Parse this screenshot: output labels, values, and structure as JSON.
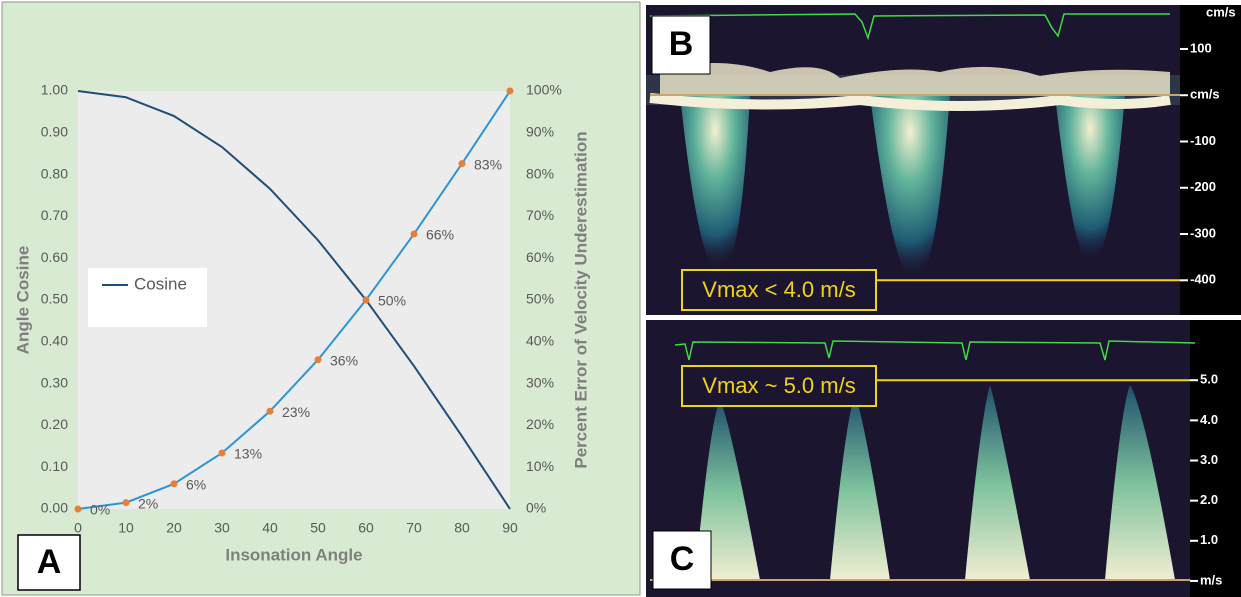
{
  "chart_data": [
    {
      "type": "line",
      "label": "A",
      "x_label": "Insonation Angle",
      "y_label": "Angle Cosine",
      "y2_label": "Percent  Error of Velocity Underestimation",
      "x": [
        0,
        10,
        20,
        30,
        40,
        50,
        60,
        70,
        80,
        90
      ],
      "series": [
        {
          "name": "Cosine",
          "color": "#1f4e79",
          "values": [
            1.0,
            0.985,
            0.94,
            0.866,
            0.766,
            0.643,
            0.5,
            0.342,
            0.174,
            0.0
          ]
        },
        {
          "color": "#2e95d3",
          "marker_color": "#ed7d31",
          "axis": "y2",
          "values": [
            0,
            1.52,
            6.03,
            13.4,
            23.4,
            35.72,
            50,
            65.8,
            82.64,
            100
          ],
          "value_labels": [
            "0%",
            "2%",
            "6%",
            "13%",
            "23%",
            "36%",
            "50%",
            "66%",
            "83%",
            null
          ]
        }
      ],
      "xlim": [
        0,
        90
      ],
      "xticks": [
        0,
        10,
        20,
        30,
        40,
        50,
        60,
        70,
        80,
        90
      ],
      "ylim": [
        0,
        1
      ],
      "yticks": [
        {
          "value": 0,
          "label": "0.00"
        },
        {
          "value": 0.1,
          "label": "0.10"
        },
        {
          "value": 0.2,
          "label": "0.20"
        },
        {
          "value": 0.3,
          "label": "0.30"
        },
        {
          "value": 0.4,
          "label": "0.40"
        },
        {
          "value": 0.5,
          "label": "0.50"
        },
        {
          "value": 0.6,
          "label": "0.60"
        },
        {
          "value": 0.7,
          "label": "0.70"
        },
        {
          "value": 0.8,
          "label": "0.80"
        },
        {
          "value": 0.9,
          "label": "0.90"
        },
        {
          "value": 1,
          "label": "1.00"
        }
      ],
      "y2lim": [
        0,
        100
      ],
      "y2ticks": [
        {
          "value": 0,
          "label": "0%"
        },
        {
          "value": 10,
          "label": "10%"
        },
        {
          "value": 20,
          "label": "20%"
        },
        {
          "value": 30,
          "label": "30%"
        },
        {
          "value": 40,
          "label": "40%"
        },
        {
          "value": 50,
          "label": "50%"
        },
        {
          "value": 60,
          "label": "60%"
        },
        {
          "value": 70,
          "label": "70%"
        },
        {
          "value": 80,
          "label": "80%"
        },
        {
          "value": 90,
          "label": "90%"
        },
        {
          "value": 100,
          "label": "100%"
        }
      ],
      "grid": false,
      "legend": "left"
    },
    {
      "type": "spectral-doppler",
      "label": "B",
      "unit": "cm/s",
      "ylim": [
        -475,
        195
      ],
      "yticks": [
        100,
        {
          "value": 0,
          "label": "cm/s"
        },
        -100,
        -200,
        -300,
        -400
      ],
      "annotation": {
        "text": "Vmax < 4.0 m/s",
        "value": -400
      }
    },
    {
      "type": "spectral-doppler",
      "label": "C",
      "ylim": [
        -0.4,
        6.5
      ],
      "yticks": [
        {
          "value": 5,
          "label": "5.0"
        },
        {
          "value": 4,
          "label": "4.0"
        },
        {
          "value": 3,
          "label": "3.0"
        },
        {
          "value": 2,
          "label": "2.0"
        },
        {
          "value": 1,
          "label": "1.0"
        },
        {
          "value": 0,
          "label": "m/s"
        }
      ],
      "annotation": {
        "text": "Vmax ~ 5.0 m/s",
        "value": 5
      }
    }
  ]
}
